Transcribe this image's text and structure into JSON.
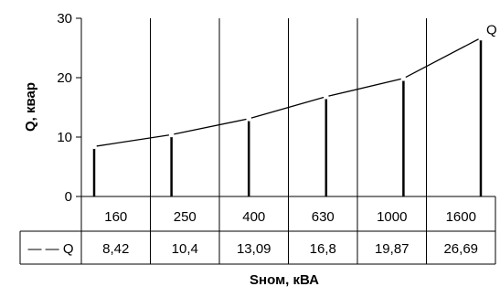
{
  "chart_data": {
    "type": "line",
    "title": "",
    "xlabel": "Sном, кВА",
    "ylabel": "Q, квар",
    "categories": [
      "160",
      "250",
      "400",
      "630",
      "1000",
      "1600"
    ],
    "ylim": [
      0,
      30
    ],
    "yticks": [
      "0",
      "10",
      "20",
      "30"
    ],
    "grid": "vertical",
    "series": [
      {
        "name": "Q",
        "values": [
          8.42,
          10.4,
          13.09,
          16.8,
          19.87,
          26.69
        ]
      }
    ],
    "table": {
      "legend_symbol": "— —",
      "legend_name": "Q",
      "values": [
        "8,42",
        "10,4",
        "13,09",
        "16,8",
        "19,87",
        "26,69"
      ]
    }
  }
}
